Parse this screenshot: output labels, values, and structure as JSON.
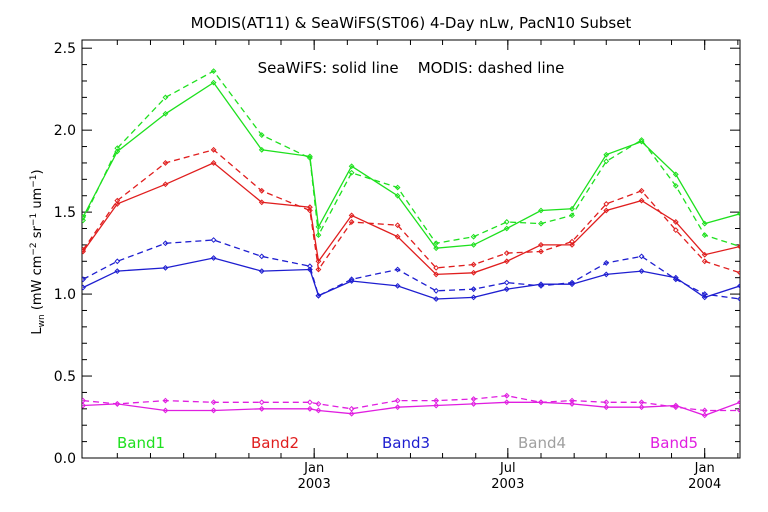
{
  "chart_data": {
    "type": "line",
    "title": "MODIS(AT11) & SeaWiFS(ST06) 4-Day nLw, PacN10 Subset",
    "subtitle": "SeaWiFS: solid line    MODIS: dashed line",
    "ylabel": "L_wn (mW cm^-2 sr^-1 um^-1)",
    "ylabel_parts": {
      "main": "L",
      "sub": "wn",
      "unit_prefix": " (mW cm",
      "exp1": "−2",
      "sr": " sr",
      "exp2": "−1",
      "um": " um",
      "exp3": "−1",
      "close": ")"
    },
    "xlim": [
      "2002-05-29",
      "2004-02-03"
    ],
    "ylim": [
      0,
      2.55
    ],
    "grid": false,
    "y_ticks": [
      {
        "value": 0.0,
        "label": "0.0"
      },
      {
        "value": 0.5,
        "label": "0.5"
      },
      {
        "value": 1.0,
        "label": "1.0"
      },
      {
        "value": 1.5,
        "label": "1.5"
      },
      {
        "value": 2.0,
        "label": "2.0"
      },
      {
        "value": 2.5,
        "label": "2.5"
      }
    ],
    "x_ticks": [
      {
        "date": "2003-01-01",
        "month": "Jan",
        "year": "2003"
      },
      {
        "date": "2003-07-01",
        "month": "Jul",
        "year": "2003"
      },
      {
        "date": "2004-01-01",
        "month": "Jan",
        "year": "2004"
      }
    ],
    "x": [
      "2002-05-30",
      "2002-07-01",
      "2002-08-15",
      "2002-09-29",
      "2002-11-13",
      "2002-12-28",
      "2003-01-05",
      "2003-02-05",
      "2003-03-20",
      "2003-04-25",
      "2003-05-30",
      "2003-06-30",
      "2003-08-01",
      "2003-08-30",
      "2003-10-01",
      "2003-11-03",
      "2003-12-05",
      "2004-01-01",
      "2004-02-03"
    ],
    "series": [
      {
        "name": "Band1",
        "color": "#1ee01e",
        "style": "solid",
        "values": [
          1.47,
          1.87,
          2.1,
          2.29,
          1.88,
          1.84,
          1.41,
          1.78,
          1.6,
          1.28,
          1.3,
          1.4,
          1.51,
          1.52,
          1.85,
          1.93,
          1.73,
          1.43,
          1.49
        ]
      },
      {
        "name": "Band1",
        "color": "#1ee01e",
        "style": "dashed",
        "values": [
          1.45,
          1.89,
          2.2,
          2.36,
          1.97,
          1.83,
          1.36,
          1.74,
          1.65,
          1.31,
          1.35,
          1.44,
          1.43,
          1.48,
          1.81,
          1.94,
          1.66,
          1.36,
          1.29
        ]
      },
      {
        "name": "Band2",
        "color": "#e01e1e",
        "style": "solid",
        "values": [
          1.26,
          1.55,
          1.67,
          1.8,
          1.56,
          1.53,
          1.2,
          1.48,
          1.35,
          1.12,
          1.13,
          1.2,
          1.3,
          1.3,
          1.51,
          1.57,
          1.44,
          1.24,
          1.29
        ]
      },
      {
        "name": "Band2",
        "color": "#e01e1e",
        "style": "dashed",
        "values": [
          1.27,
          1.57,
          1.8,
          1.88,
          1.63,
          1.51,
          1.15,
          1.44,
          1.42,
          1.16,
          1.18,
          1.25,
          1.26,
          1.32,
          1.55,
          1.63,
          1.39,
          1.2,
          1.13
        ]
      },
      {
        "name": "Band3",
        "color": "#1e1ed0",
        "style": "solid",
        "values": [
          1.04,
          1.14,
          1.16,
          1.22,
          1.14,
          1.15,
          0.99,
          1.08,
          1.05,
          0.97,
          0.98,
          1.03,
          1.06,
          1.06,
          1.12,
          1.14,
          1.1,
          0.98,
          1.05
        ]
      },
      {
        "name": "Band3",
        "color": "#1e1ed0",
        "style": "dashed",
        "values": [
          1.09,
          1.2,
          1.31,
          1.33,
          1.23,
          1.17,
          0.99,
          1.09,
          1.15,
          1.02,
          1.03,
          1.07,
          1.05,
          1.07,
          1.19,
          1.23,
          1.09,
          1.0,
          0.97
        ]
      },
      {
        "name": "Band5",
        "color": "#e01ee0",
        "style": "solid",
        "values": [
          0.32,
          0.33,
          0.29,
          0.29,
          0.3,
          0.3,
          0.29,
          0.27,
          0.31,
          0.32,
          0.33,
          0.34,
          0.34,
          0.33,
          0.31,
          0.31,
          0.32,
          0.26,
          0.34
        ]
      },
      {
        "name": "Band5",
        "color": "#e01ee0",
        "style": "dashed",
        "values": [
          0.35,
          0.33,
          0.35,
          0.34,
          0.34,
          0.34,
          0.33,
          0.3,
          0.35,
          0.35,
          0.36,
          0.38,
          0.34,
          0.35,
          0.34,
          0.34,
          0.31,
          0.29,
          0.29
        ]
      }
    ],
    "legend": [
      {
        "label": "Band1",
        "color": "#1ee01e"
      },
      {
        "label": "Band2",
        "color": "#e01e1e"
      },
      {
        "label": "Band3",
        "color": "#1e1ed0"
      },
      {
        "label": "Band4",
        "color": "#a0a0a0"
      },
      {
        "label": "Band5",
        "color": "#e01ee0"
      }
    ],
    "legend_position": "bottom"
  }
}
